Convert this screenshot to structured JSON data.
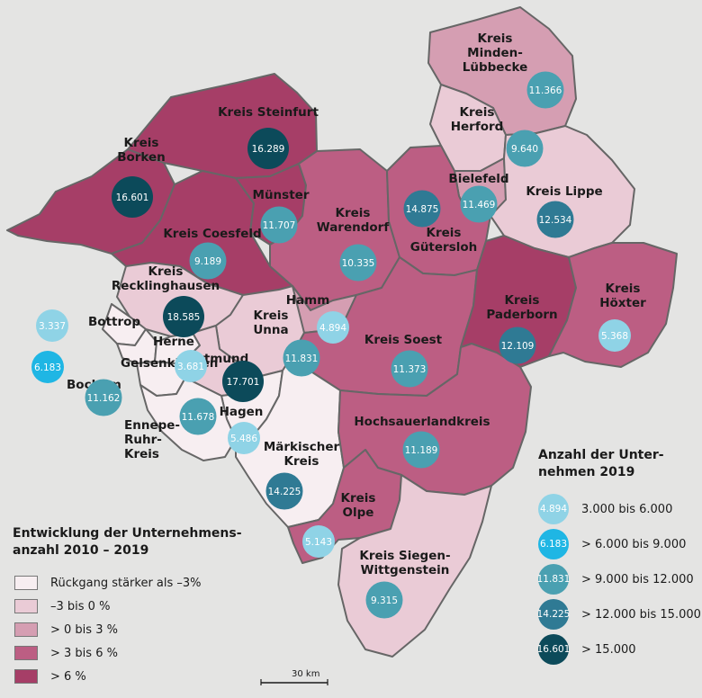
{
  "colors": {
    "background": "#e4e4e3",
    "class_1": "#f7eef1",
    "class_2": "#eacbd6",
    "class_3": "#d59eb2",
    "class_4": "#bc5e83",
    "class_5": "#a63e67",
    "border": "#666666",
    "bubble_1": "#8fd3e6",
    "bubble_2": "#1fb6e4",
    "bubble_3": "#4aa0b1",
    "bubble_4": "#2f7a94",
    "bubble_5": "#0c4a5a"
  },
  "regions": [
    {
      "id": "borken",
      "label": "Kreis\nBorken",
      "class": 5,
      "value": "16.601",
      "size_class": 5
    },
    {
      "id": "steinfurt",
      "label": "Kreis Steinfurt",
      "class": 5,
      "value": "16.289",
      "size_class": 5
    },
    {
      "id": "coesfeld",
      "label": "Kreis Coesfeld",
      "class": 5,
      "value": "9.189",
      "size_class": 3
    },
    {
      "id": "muenster",
      "label": "Münster",
      "class": 5,
      "value": "11.707",
      "size_class": 3
    },
    {
      "id": "warendorf",
      "label": "Kreis\nWarendorf",
      "class": 4,
      "value": "10.335",
      "size_class": 3
    },
    {
      "id": "minden",
      "label": "Kreis\nMinden-\nLübbecke",
      "class": 3,
      "value": "11.366",
      "size_class": 3
    },
    {
      "id": "herford",
      "label": "Kreis\nHerford",
      "class": 2,
      "value": "9.640",
      "size_class": 3
    },
    {
      "id": "bielefeld",
      "label": "Bielefeld",
      "class": 3,
      "value": "11.469",
      "size_class": 3
    },
    {
      "id": "guetersloh",
      "label": "Kreis\nGütersloh",
      "class": 4,
      "value": "14.875",
      "size_class": 4
    },
    {
      "id": "lippe",
      "label": "Kreis Lippe",
      "class": 2,
      "value": "12.534",
      "size_class": 4
    },
    {
      "id": "recklinghausen",
      "label": "Kreis\nRecklinghausen",
      "class": 2,
      "value": "18.585",
      "size_class": 5
    },
    {
      "id": "bottrop",
      "label": "Bottrop",
      "class": 1,
      "value": "3.337",
      "size_class": 1
    },
    {
      "id": "gelsenkirchen",
      "label": "Gelsenkirchen",
      "class": 1,
      "value": "6.183",
      "size_class": 2
    },
    {
      "id": "bochum",
      "label": "Bochum",
      "class": 1,
      "value": "11.162",
      "size_class": 3
    },
    {
      "id": "herne",
      "label": "Herne",
      "class": 1,
      "value": "3.681",
      "size_class": 1
    },
    {
      "id": "unna",
      "label": "Kreis\nUnna",
      "class": 2,
      "value": "11.831",
      "size_class": 3
    },
    {
      "id": "hamm",
      "label": "Hamm",
      "class": 3,
      "value": "4.894",
      "size_class": 1
    },
    {
      "id": "dortmund",
      "label": "Dortmund",
      "class": 2,
      "value": "17.701",
      "size_class": 5
    },
    {
      "id": "soest",
      "label": "Kreis Soest",
      "class": 4,
      "value": "11.373",
      "size_class": 3
    },
    {
      "id": "paderborn",
      "label": "Kreis\nPaderborn",
      "class": 5,
      "value": "12.109",
      "size_class": 4
    },
    {
      "id": "hoexter",
      "label": "Kreis\nHöxter",
      "class": 4,
      "value": "5.368",
      "size_class": 1
    },
    {
      "id": "hagen",
      "label": "Hagen",
      "class": 1,
      "value": "5.486",
      "size_class": 1
    },
    {
      "id": "ennepe",
      "label": "Ennepe-\nRuhr-\nKreis",
      "class": 1,
      "value": "11.678",
      "size_class": 3
    },
    {
      "id": "maerkischer",
      "label": "Märkischer\nKreis",
      "class": 1,
      "value": "14.225",
      "size_class": 4
    },
    {
      "id": "hochsauerland",
      "label": "Hochsauerlandkreis",
      "class": 4,
      "value": "11.189",
      "size_class": 3
    },
    {
      "id": "olpe",
      "label": "Kreis\nOlpe",
      "class": 4,
      "value": "5.143",
      "size_class": 1
    },
    {
      "id": "siegen",
      "label": "Kreis Siegen-\nWittgenstein",
      "class": 2,
      "value": "9.315",
      "size_class": 3
    }
  ],
  "legend_development": {
    "title_line1": "Entwicklung der Unternehmens-",
    "title_line2": "anzahl 2010 – 2019",
    "items": [
      {
        "label": "Rückgang stärker als –3%",
        "color": "#f7eef1"
      },
      {
        "label": "–3 bis 0 %",
        "color": "#eacbd6"
      },
      {
        "label": "> 0 bis 3 %",
        "color": "#d59eb2"
      },
      {
        "label": "> 3 bis 6 %",
        "color": "#bc5e83"
      },
      {
        "label": "> 6 %",
        "color": "#a63e67"
      }
    ]
  },
  "legend_count": {
    "title_line1": "Anzahl der Unter-",
    "title_line2": "nehmen 2019",
    "items": [
      {
        "value": "4.894",
        "label": "3.000 bis 6.000",
        "color": "#8fd3e6"
      },
      {
        "value": "6.183",
        "label": "> 6.000 bis 9.000",
        "color": "#1fb6e4"
      },
      {
        "value": "11.831",
        "label": "> 9.000 bis 12.000",
        "color": "#4aa0b1"
      },
      {
        "value": "14.225",
        "label": "> 12.000 bis 15.000",
        "color": "#2f7a94"
      },
      {
        "value": "16.601",
        "label": "> 15.000",
        "color": "#0c4a5a"
      }
    ]
  },
  "scale_label": "30 km"
}
